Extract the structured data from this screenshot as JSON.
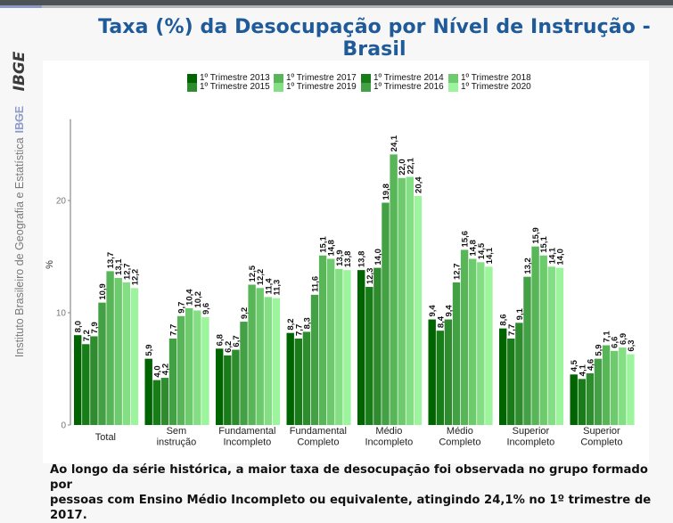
{
  "page": {
    "title": "Taxa (%) da Desocupação por Nível de Instrução - Brasil",
    "caption_line1": "Ao longo da série histórica, a maior taxa de desocupação foi observada no grupo formado por",
    "caption_line2": "pessoas com Ensino Médio Incompleto ou equivalente, atingindo 24,1% no 1º trimestre de 2017."
  },
  "sidebar": {
    "logo_text": "IBGE",
    "institute_text": "Instituto Brasileiro de Geografia e Estatística",
    "institute_abbr": "IBGE"
  },
  "colors": {
    "title": "#1f5a99",
    "series": [
      "#006400",
      "#187d18",
      "#2e8b2e",
      "#44a044",
      "#58b658",
      "#6dca6d",
      "#84de84",
      "#9cf59c"
    ]
  },
  "chart_data": {
    "type": "bar",
    "title": "Taxa (%) da Desocupação por Nível de Instrução - Brasil",
    "xlabel": "",
    "ylabel": "%",
    "ylim": [
      0,
      27
    ],
    "yticks": [
      0,
      10,
      20
    ],
    "grid": false,
    "legend_position": "top",
    "categories": [
      [
        "Total"
      ],
      [
        "Sem",
        "instrução"
      ],
      [
        "Fundamental",
        "Incompleto"
      ],
      [
        "Fundamental",
        "Completo"
      ],
      [
        "Médio",
        "Incompleto"
      ],
      [
        "Médio",
        "Completo"
      ],
      [
        "Superior",
        "Incompleto"
      ],
      [
        "Superior",
        "Completo"
      ]
    ],
    "series": [
      {
        "name": "1º Trimestre 2013",
        "values": [
          8.0,
          5.9,
          6.8,
          8.2,
          13.8,
          9.4,
          8.6,
          4.5
        ]
      },
      {
        "name": "1º Trimestre 2014",
        "values": [
          7.2,
          4.0,
          6.2,
          7.7,
          12.3,
          8.4,
          7.7,
          4.1
        ]
      },
      {
        "name": "1º Trimestre 2015",
        "values": [
          7.9,
          4.2,
          6.7,
          8.3,
          14.0,
          9.4,
          9.1,
          4.6
        ]
      },
      {
        "name": "1º Trimestre 2016",
        "values": [
          10.9,
          7.7,
          9.2,
          11.6,
          19.8,
          12.7,
          13.2,
          5.9
        ]
      },
      {
        "name": "1º Trimestre 2017",
        "values": [
          13.7,
          9.7,
          12.5,
          15.1,
          24.1,
          15.6,
          15.9,
          7.1
        ]
      },
      {
        "name": "1º Trimestre 2018",
        "values": [
          13.1,
          10.4,
          12.2,
          14.8,
          22.0,
          14.8,
          15.1,
          6.6
        ]
      },
      {
        "name": "1º Trimestre 2019",
        "values": [
          12.7,
          10.2,
          11.4,
          13.9,
          22.1,
          14.5,
          14.1,
          6.9
        ]
      },
      {
        "name": "1º Trimestre 2020",
        "values": [
          12.2,
          9.6,
          11.3,
          13.8,
          20.4,
          14.1,
          14.0,
          6.3
        ]
      }
    ],
    "legend_order": [
      0,
      2,
      4,
      6,
      1,
      3,
      5,
      7
    ]
  }
}
